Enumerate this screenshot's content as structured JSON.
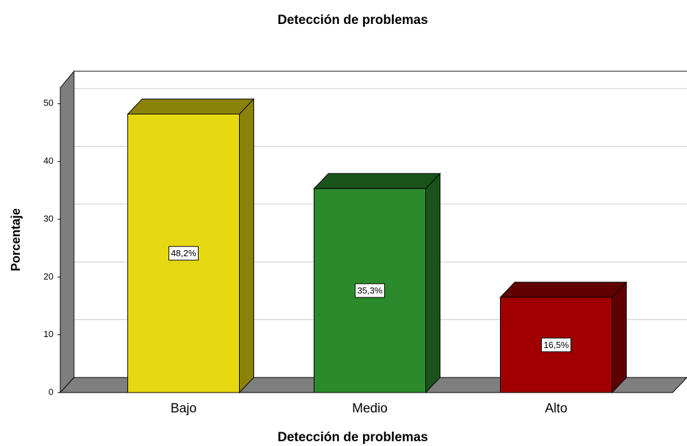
{
  "chart_data": {
    "type": "bar3d",
    "title": "Detección de problemas",
    "x_label": "Detección de problemas",
    "y_label": "Porcentaje",
    "categories": [
      "Bajo",
      "Medio",
      "Alto"
    ],
    "values": [
      48.2,
      35.3,
      16.5
    ],
    "value_labels": [
      "48,2%",
      "35,3%",
      "16,5%"
    ],
    "colors": [
      "#e6d811",
      "#2b8a2b",
      "#a00000"
    ],
    "ylim": [
      0,
      53
    ],
    "yticks": [
      0,
      10,
      20,
      30,
      40,
      50
    ],
    "grid": true
  }
}
